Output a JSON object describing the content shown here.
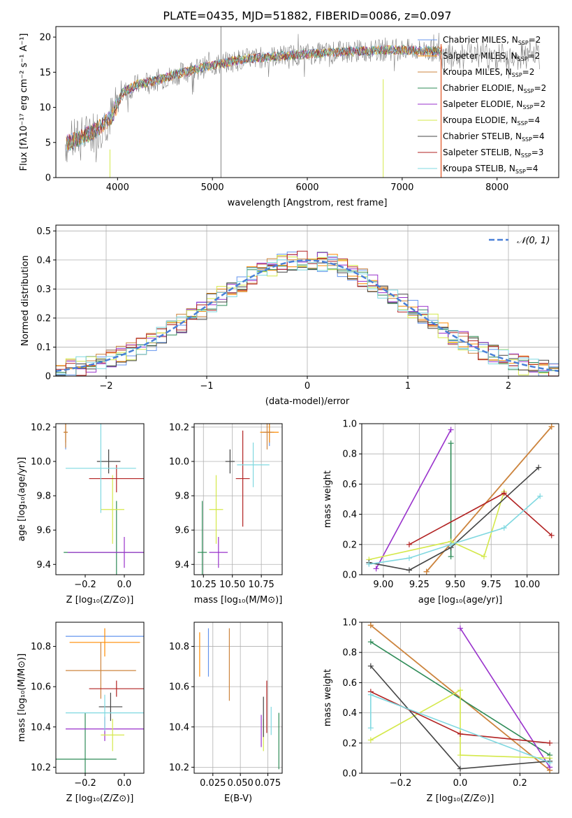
{
  "figure_title": "PLATE=0435, MJD=51882, FIBERID=0086, z=0.097",
  "series": [
    {
      "name": "Chabrier MILES",
      "n_ssp": "2",
      "color": "#6495ed"
    },
    {
      "name": "Salpeter MILES",
      "n_ssp": "2",
      "color": "#ff8c00"
    },
    {
      "name": "Kroupa MILES",
      "n_ssp": "2",
      "color": "#cd853f"
    },
    {
      "name": "Chabrier ELODIE",
      "n_ssp": "2",
      "color": "#2e8b57"
    },
    {
      "name": "Salpeter ELODIE",
      "n_ssp": "2",
      "color": "#9932cc"
    },
    {
      "name": "Kroupa ELODIE",
      "n_ssp": "4",
      "color": "#d4e84a"
    },
    {
      "name": "Chabrier STELIB",
      "n_ssp": "4",
      "color": "#444444"
    },
    {
      "name": "Salpeter STELIB",
      "n_ssp": "3",
      "color": "#b22222"
    },
    {
      "name": "Kroupa STELIB",
      "n_ssp": "4",
      "color": "#7fd8e0"
    }
  ],
  "chart_data": [
    {
      "id": "spectrum",
      "type": "line",
      "xlabel": "wavelength [Angstrom, rest frame]",
      "ylabel": "Flux [fλ10⁻¹⁷ erg cm⁻² s⁻¹ A⁻¹]",
      "xlim": [
        3350,
        8650
      ],
      "ylim": [
        0,
        21.5
      ],
      "xticks": [
        4000,
        5000,
        6000,
        7000,
        8000
      ],
      "yticks": [
        0,
        5,
        10,
        15,
        20
      ],
      "grid": false,
      "legend": "right",
      "data_color": "#808080",
      "continuum": {
        "x": [
          3450,
          3600,
          3800,
          3950,
          4050,
          4200,
          4400,
          4700,
          5000,
          5300,
          5600,
          6000,
          6500,
          7000,
          7400
        ],
        "y": [
          4.8,
          5.5,
          7.0,
          9.0,
          12.0,
          13.2,
          13.8,
          15.0,
          16.0,
          16.8,
          17.2,
          17.6,
          18.0,
          18.2,
          18.0
        ]
      }
    },
    {
      "id": "residuals",
      "type": "histogram",
      "xlabel": "(data-model)/error",
      "ylabel": "Normed distribution",
      "xlim": [
        -2.5,
        2.5
      ],
      "ylim": [
        0,
        0.52
      ],
      "xticks": [
        -2,
        -1,
        0,
        1,
        2
      ],
      "yticks": [
        0,
        0.1,
        0.2,
        0.3,
        0.4,
        0.5
      ],
      "grid": true,
      "legend": "top-right",
      "reference_label": "𝒩(0, 1)",
      "reference_color": "#4a80d8"
    },
    {
      "id": "z-age",
      "type": "errorbar",
      "xlabel": "Z [log₁₀(Z/Z⊙)]",
      "ylabel": "age  [log₁₀(age/yr)]",
      "xlim": [
        -0.35,
        0.1
      ],
      "ylim": [
        9.34,
        10.22
      ],
      "xticks": [
        -0.2,
        0.0
      ],
      "yticks": [
        9.4,
        9.6,
        9.8,
        10.0,
        10.2
      ],
      "points": [
        {
          "x": -0.3,
          "xerr": 0.01,
          "y": 10.17,
          "yerr": 0.1
        },
        {
          "x": -0.3,
          "xerr": 0.01,
          "y": 10.17,
          "yerr": 0.06
        },
        {
          "x": -0.3,
          "xerr": 0.01,
          "y": 10.17,
          "yerr": 0.09
        },
        {
          "x": -0.04,
          "xerr": 0.27,
          "y": 9.47,
          "yerr": 0.3
        },
        {
          "x": 0.0,
          "xerr": 0.29,
          "y": 9.47,
          "yerr": 0.09
        },
        {
          "x": -0.06,
          "xerr": 0.06,
          "y": 9.72,
          "yerr": 0.2
        },
        {
          "x": -0.08,
          "xerr": 0.06,
          "y": 10.0,
          "yerr": 0.07
        },
        {
          "x": -0.04,
          "xerr": 0.14,
          "y": 9.9,
          "yerr": 0.08
        },
        {
          "x": -0.12,
          "xerr": 0.18,
          "y": 9.96,
          "yerr": 0.26
        }
      ]
    },
    {
      "id": "mass-age",
      "type": "errorbar",
      "xlabel": "mass [log₁₀(M/M⊙)]",
      "ylabel": "",
      "xlim": [
        10.17,
        10.93
      ],
      "ylim": [
        9.34,
        10.22
      ],
      "xticks": [
        10.25,
        10.5,
        10.75
      ],
      "yticks": [
        9.4,
        9.6,
        9.8,
        10.0,
        10.2
      ],
      "points": [
        {
          "x": 10.82,
          "xerr": 0.04,
          "y": 10.17,
          "yerr": 0.08
        },
        {
          "x": 10.82,
          "xerr": 0.08,
          "y": 10.17,
          "yerr": 0.06
        },
        {
          "x": 10.8,
          "xerr": 0.04,
          "y": 10.17,
          "yerr": 0.1
        },
        {
          "x": 10.24,
          "xerr": 0.04,
          "y": 9.47,
          "yerr": 0.3
        },
        {
          "x": 10.38,
          "xerr": 0.08,
          "y": 9.47,
          "yerr": 0.09
        },
        {
          "x": 10.36,
          "xerr": 0.06,
          "y": 9.72,
          "yerr": 0.2
        },
        {
          "x": 10.48,
          "xerr": 0.04,
          "y": 10.0,
          "yerr": 0.07
        },
        {
          "x": 10.59,
          "xerr": 0.06,
          "y": 9.9,
          "yerr": 0.28
        },
        {
          "x": 10.68,
          "xerr": 0.14,
          "y": 9.98,
          "yerr": 0.13
        }
      ]
    },
    {
      "id": "age-weight",
      "type": "line",
      "xlabel": "age  [log₁₀(age/yr)]",
      "ylabel": "mass weight",
      "xlim": [
        8.85,
        10.22
      ],
      "ylim": [
        0,
        1.0
      ],
      "xticks": [
        9.0,
        9.25,
        9.5,
        9.75,
        10.0
      ],
      "yticks": [
        0,
        0.2,
        0.4,
        0.6,
        0.8,
        1.0
      ],
      "grid": true,
      "series": [
        {
          "x": [
            9.3,
            10.17
          ],
          "y": [
            0.02,
            0.98
          ]
        },
        {
          "x": [
            9.3,
            10.17
          ],
          "y": [
            0.02,
            0.98
          ]
        },
        {
          "x": [
            9.3,
            10.17
          ],
          "y": [
            0.02,
            0.98
          ]
        },
        {
          "x": [
            9.47,
            9.47
          ],
          "y": [
            0.12,
            0.87
          ]
        },
        {
          "x": [
            8.95,
            9.47
          ],
          "y": [
            0.04,
            0.96
          ]
        },
        {
          "x": [
            8.9,
            9.47,
            9.7,
            9.84
          ],
          "y": [
            0.1,
            0.22,
            0.12,
            0.55
          ]
        },
        {
          "x": [
            8.9,
            9.18,
            9.47,
            10.08
          ],
          "y": [
            0.08,
            0.03,
            0.18,
            0.71
          ]
        },
        {
          "x": [
            9.18,
            9.84,
            10.17
          ],
          "y": [
            0.2,
            0.54,
            0.26
          ]
        },
        {
          "x": [
            8.9,
            9.18,
            9.47,
            9.84,
            10.09
          ],
          "y": [
            0.07,
            0.11,
            0.2,
            0.31,
            0.52
          ]
        }
      ]
    },
    {
      "id": "z-mass",
      "type": "errorbar",
      "xlabel": "Z [log₁₀(Z/Z⊙)]",
      "ylabel": "mass [log₁₀(M/M⊙)]",
      "xlim": [
        -0.35,
        0.1
      ],
      "ylim": [
        10.17,
        10.92
      ],
      "xticks": [
        -0.2,
        0.0
      ],
      "yticks": [
        10.2,
        10.4,
        10.6,
        10.8
      ],
      "points": [
        {
          "x": -0.1,
          "xerr": 0.2,
          "y": 10.85,
          "yerr": 0.0
        },
        {
          "x": -0.1,
          "xerr": 0.18,
          "y": 10.82,
          "yerr": 0.07
        },
        {
          "x": -0.12,
          "xerr": 0.18,
          "y": 10.68,
          "yerr": 0.14
        },
        {
          "x": -0.2,
          "xerr": 0.16,
          "y": 10.24,
          "yerr": 0.23
        },
        {
          "x": -0.1,
          "xerr": 0.2,
          "y": 10.39,
          "yerr": 0.06
        },
        {
          "x": -0.06,
          "xerr": 0.06,
          "y": 10.36,
          "yerr": 0.08
        },
        {
          "x": -0.07,
          "xerr": 0.06,
          "y": 10.5,
          "yerr": 0.07
        },
        {
          "x": -0.04,
          "xerr": 0.14,
          "y": 10.59,
          "yerr": 0.04
        },
        {
          "x": -0.1,
          "xerr": 0.2,
          "y": 10.47,
          "yerr": 0.09
        }
      ]
    },
    {
      "id": "ebv-mass",
      "type": "errorbar",
      "xlabel": "E(B-V)",
      "ylabel": "",
      "xlim": [
        0.008,
        0.088
      ],
      "ylim": [
        10.17,
        10.92
      ],
      "xticks": [
        0.025,
        0.05,
        0.075
      ],
      "yticks": [
        10.2,
        10.4,
        10.6,
        10.8
      ],
      "points": [
        {
          "x": 0.021,
          "xerr": 0.0,
          "y": 10.77,
          "yerr": 0.12
        },
        {
          "x": 0.013,
          "xerr": 0.0,
          "y": 10.76,
          "yerr": 0.11
        },
        {
          "x": 0.04,
          "xerr": 0.0,
          "y": 10.71,
          "yerr": 0.18
        },
        {
          "x": 0.085,
          "xerr": 0.0,
          "y": 10.33,
          "yerr": 0.14
        },
        {
          "x": 0.069,
          "xerr": 0.0,
          "y": 10.38,
          "yerr": 0.08
        },
        {
          "x": 0.071,
          "xerr": 0.0,
          "y": 10.36,
          "yerr": 0.08
        },
        {
          "x": 0.071,
          "xerr": 0.0,
          "y": 10.45,
          "yerr": 0.1
        },
        {
          "x": 0.074,
          "xerr": 0.0,
          "y": 10.5,
          "yerr": 0.13
        },
        {
          "x": 0.078,
          "xerr": 0.0,
          "y": 10.43,
          "yerr": 0.07
        }
      ]
    },
    {
      "id": "z-weight",
      "type": "line",
      "xlabel": "Z [log₁₀(Z/Z⊙)]",
      "ylabel": "mass weight",
      "xlim": [
        -0.33,
        0.33
      ],
      "ylim": [
        0,
        1.0
      ],
      "xticks": [
        -0.2,
        0.0,
        0.2
      ],
      "yticks": [
        0,
        0.2,
        0.4,
        0.6,
        0.8,
        1.0
      ],
      "grid": true,
      "series": [
        {
          "x": [
            -0.3,
            0.3
          ],
          "y": [
            0.98,
            0.02
          ]
        },
        {
          "x": [
            -0.3,
            0.3
          ],
          "y": [
            0.98,
            0.02
          ]
        },
        {
          "x": [
            -0.3,
            0.3
          ],
          "y": [
            0.98,
            0.02
          ]
        },
        {
          "x": [
            -0.3,
            0.3
          ],
          "y": [
            0.87,
            0.12
          ]
        },
        {
          "x": [
            0.0,
            0.3
          ],
          "y": [
            0.96,
            0.04
          ]
        },
        {
          "x": [
            -0.3,
            0.0,
            0.0,
            0.3
          ],
          "y": [
            0.22,
            0.55,
            0.12,
            0.1
          ]
        },
        {
          "x": [
            -0.3,
            0.0,
            0.3
          ],
          "y": [
            0.71,
            0.03,
            0.08
          ]
        },
        {
          "x": [
            -0.3,
            0.0,
            0.3
          ],
          "y": [
            0.54,
            0.26,
            0.2
          ]
        },
        {
          "x": [
            -0.3,
            -0.3,
            0.3
          ],
          "y": [
            0.3,
            0.52,
            0.07
          ]
        }
      ]
    }
  ]
}
